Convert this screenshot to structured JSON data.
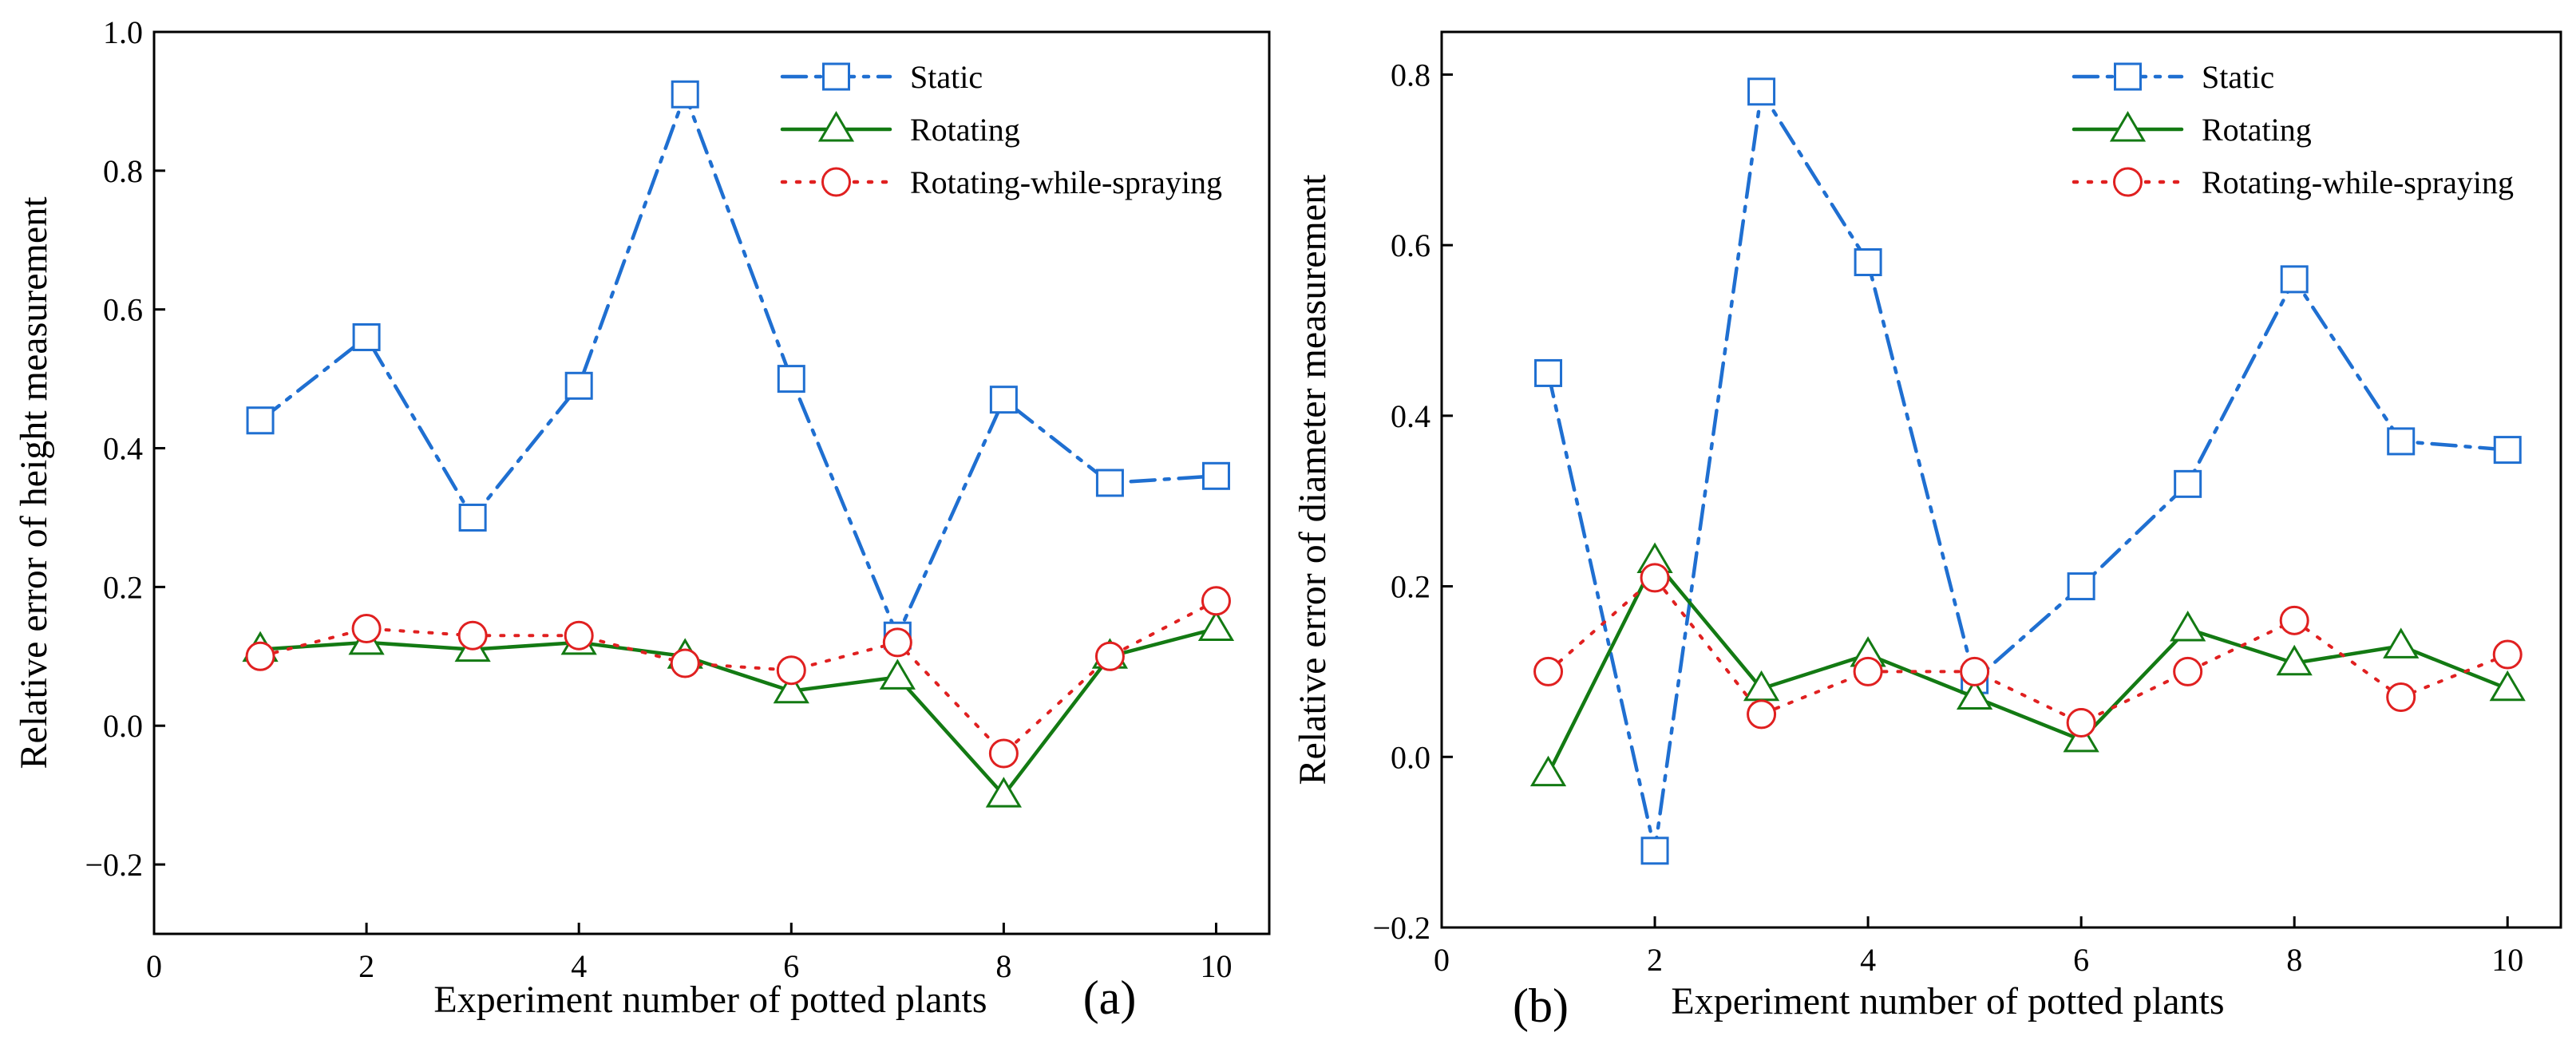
{
  "chart_data": [
    {
      "type": "line",
      "panel_label": "(a)",
      "xlabel": "Experiment number of potted plants",
      "ylabel": "Relative error of height measurement",
      "xlim": [
        0,
        10.5
      ],
      "ylim": [
        -0.3,
        1.0
      ],
      "xticks": [
        0,
        2,
        4,
        6,
        8,
        10
      ],
      "yticks": [
        -0.2,
        0.0,
        0.2,
        0.4,
        0.6,
        0.8,
        1.0
      ],
      "ytick_labels": [
        "−0.2",
        "0.0",
        "0.2",
        "0.4",
        "0.6",
        "0.8",
        "1.0"
      ],
      "grid": false,
      "legend_position": "top-right",
      "x": [
        1,
        2,
        3,
        4,
        5,
        6,
        7,
        8,
        9,
        10
      ],
      "series": [
        {
          "name": "Static",
          "color": "#1f6fd1",
          "marker": "square",
          "line": "dash-dot",
          "values": [
            0.44,
            0.56,
            0.3,
            0.49,
            0.91,
            0.5,
            0.13,
            0.47,
            0.35,
            0.36
          ]
        },
        {
          "name": "Rotating",
          "color": "#137a13",
          "marker": "triangle",
          "line": "solid",
          "values": [
            0.11,
            0.12,
            0.11,
            0.12,
            0.1,
            0.05,
            0.07,
            -0.1,
            0.1,
            0.14
          ]
        },
        {
          "name": "Rotating-while-spraying",
          "color": "#e02020",
          "marker": "circle",
          "line": "dotted",
          "values": [
            0.1,
            0.14,
            0.13,
            0.13,
            0.09,
            0.08,
            0.12,
            -0.04,
            0.1,
            0.18
          ]
        }
      ]
    },
    {
      "type": "line",
      "panel_label": "(b)",
      "xlabel": "Experiment number of potted plants",
      "ylabel": "Relative error of diameter measurement",
      "xlim": [
        0,
        10.5
      ],
      "ylim": [
        -0.2,
        0.85
      ],
      "xticks": [
        0,
        2,
        4,
        6,
        8,
        10
      ],
      "yticks": [
        -0.2,
        0.0,
        0.2,
        0.4,
        0.6,
        0.8
      ],
      "ytick_labels": [
        "−0.2",
        "0.0",
        "0.2",
        "0.4",
        "0.6",
        "0.8"
      ],
      "grid": false,
      "legend_position": "top-right",
      "x": [
        1,
        2,
        3,
        4,
        5,
        6,
        7,
        8,
        9,
        10
      ],
      "series": [
        {
          "name": "Static",
          "color": "#1f6fd1",
          "marker": "square",
          "line": "dash-dot",
          "values": [
            0.45,
            -0.11,
            0.78,
            0.58,
            0.09,
            0.2,
            0.32,
            0.56,
            0.37,
            0.36
          ]
        },
        {
          "name": "Rotating",
          "color": "#137a13",
          "marker": "triangle",
          "line": "solid",
          "values": [
            -0.02,
            0.23,
            0.08,
            0.12,
            0.07,
            0.02,
            0.15,
            0.11,
            0.13,
            0.08
          ]
        },
        {
          "name": "Rotating-while-spraying",
          "color": "#e02020",
          "marker": "circle",
          "line": "dotted",
          "values": [
            0.1,
            0.21,
            0.05,
            0.1,
            0.1,
            0.04,
            0.1,
            0.16,
            0.07,
            0.12
          ]
        }
      ]
    }
  ]
}
